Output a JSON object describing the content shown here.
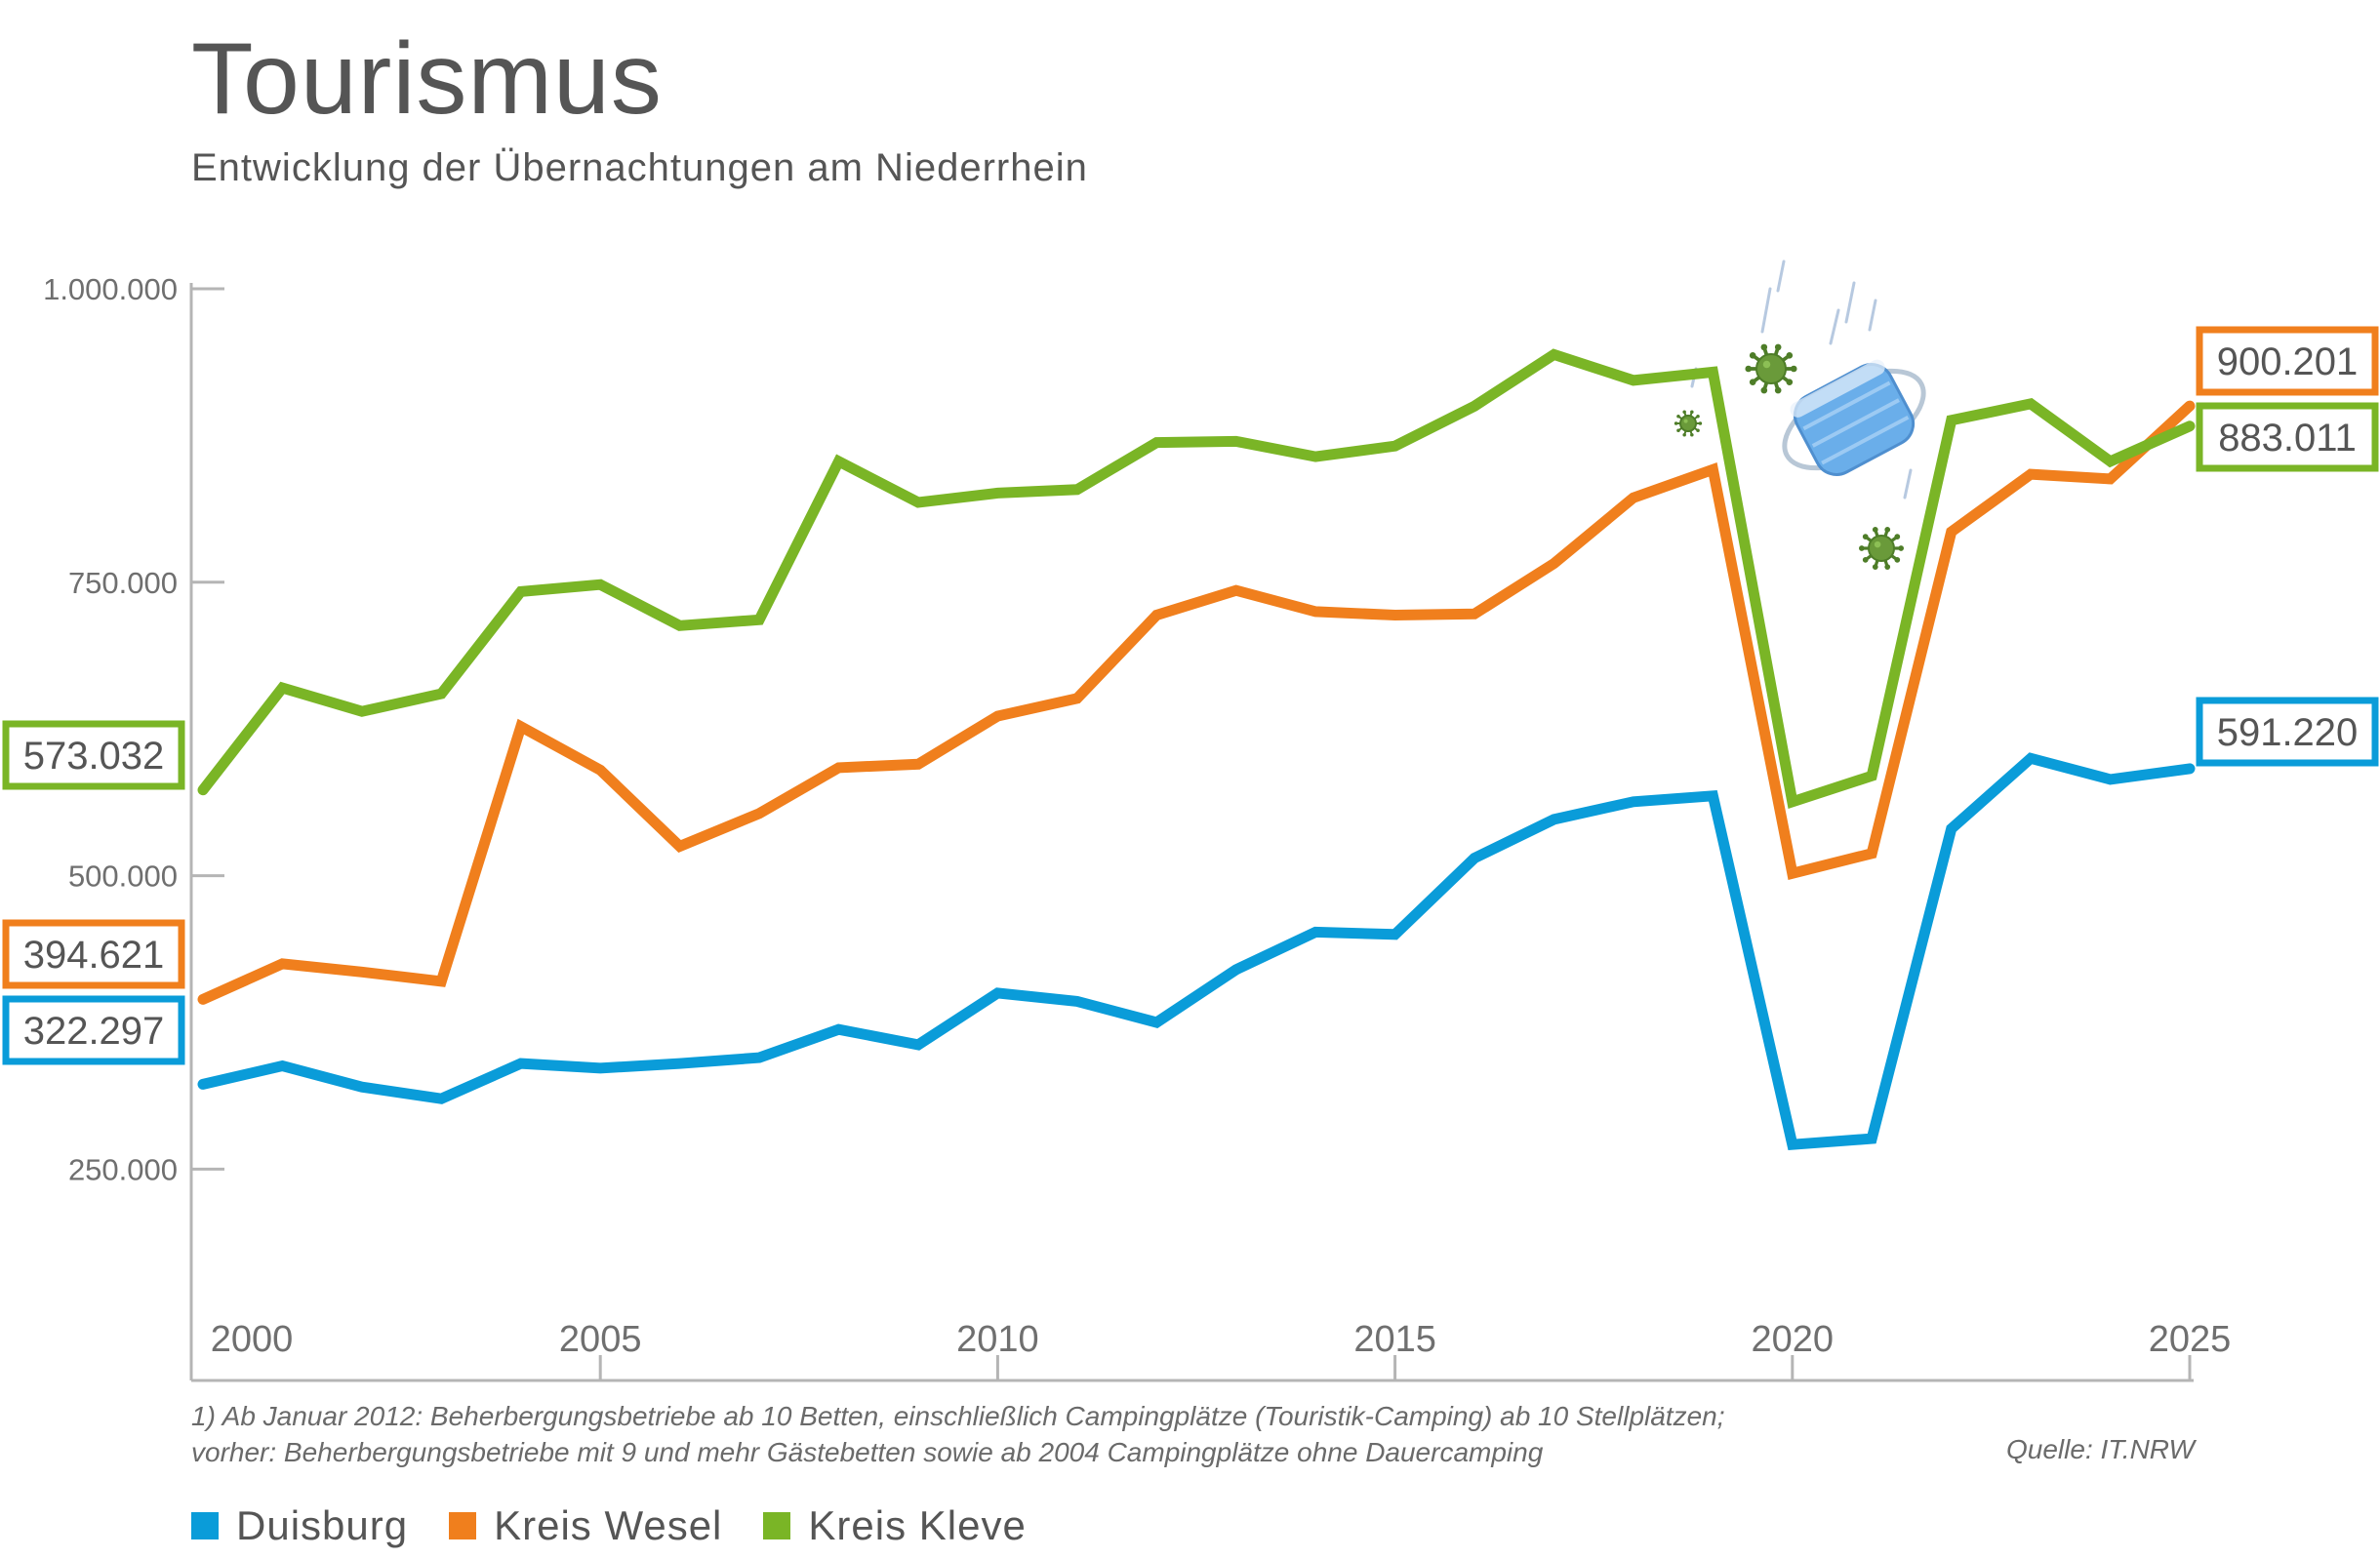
{
  "header": {
    "title": "Tourismus",
    "subtitle": "Entwicklung der Übernachtungen am Niederrhein"
  },
  "chart_data": {
    "type": "line",
    "x": [
      2000,
      2001,
      2002,
      2003,
      2004,
      2005,
      2006,
      2007,
      2008,
      2009,
      2010,
      2011,
      2012,
      2013,
      2014,
      2015,
      2016,
      2017,
      2018,
      2019,
      2020,
      2021,
      2022,
      2023,
      2024,
      2025
    ],
    "xlim": [
      2000,
      2025
    ],
    "ylim": [
      70000,
      1000000
    ],
    "x_ticks": [
      {
        "value": 2000,
        "label": "2000"
      },
      {
        "value": 2005,
        "label": "2005"
      },
      {
        "value": 2010,
        "label": "2010"
      },
      {
        "value": 2015,
        "label": "2015"
      },
      {
        "value": 2020,
        "label": "2020"
      },
      {
        "value": 2025,
        "label": "2025"
      }
    ],
    "y_ticks": [
      {
        "value": 1000000,
        "label": "1.000.000"
      },
      {
        "value": 750000,
        "label": "750.000"
      },
      {
        "value": 500000,
        "label": "500.000"
      },
      {
        "value": 250000,
        "label": "250.000"
      }
    ],
    "grid": false,
    "series": [
      {
        "name": "Duisburg",
        "color": "#0a9cd9",
        "values": [
          322297,
          338000,
          320000,
          310000,
          340000,
          336000,
          340000,
          345000,
          369000,
          356000,
          400000,
          393000,
          375000,
          420000,
          452000,
          450000,
          515000,
          548000,
          563000,
          568000,
          271000,
          276000,
          540000,
          600000,
          582000,
          591220
        ],
        "start_label": "322.297",
        "end_label": "591.220"
      },
      {
        "name": "Kreis Wesel",
        "color": "#f07f1d",
        "values": [
          394621,
          425000,
          418000,
          410000,
          627000,
          590000,
          525000,
          553000,
          592000,
          595000,
          636000,
          651000,
          722000,
          743000,
          725000,
          722000,
          723000,
          766000,
          822000,
          846000,
          502000,
          519000,
          793000,
          842000,
          838000,
          900201
        ],
        "start_label": "394.621",
        "end_label": "900.201"
      },
      {
        "name": "Kreis Kleve",
        "color": "#7ab526",
        "values": [
          573032,
          660000,
          640000,
          655000,
          742000,
          748000,
          713000,
          718000,
          853000,
          818000,
          826000,
          829000,
          869000,
          870000,
          857000,
          866000,
          900000,
          944000,
          922000,
          929000,
          563000,
          585000,
          888000,
          902000,
          853000,
          883011
        ],
        "start_label": "573.032",
        "end_label": "883.011"
      }
    ]
  },
  "footnote": {
    "line1": "1) Ab Januar 2012: Beherbergungsbetriebe ab 10 Betten, einschließlich Campingplätze (Touristik-Camping) ab 10 Stellplätzen;",
    "line2": "vorher: Beherbergungsbetriebe mit 9 und mehr Gästebetten sowie ab 2004 Campingplätze ohne Dauercamping",
    "source": "Quelle: IT.NRW"
  },
  "decorations": {
    "icons": [
      "virus-icon",
      "face-mask-icon"
    ],
    "virus_color": "#4e7d28",
    "mask_color": "#6aaeea"
  }
}
